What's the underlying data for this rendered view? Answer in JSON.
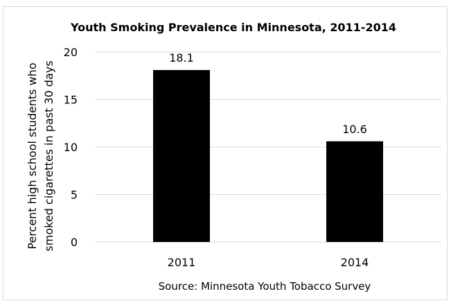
{
  "chart_data": {
    "type": "bar",
    "title": "Youth Smoking Prevalence in Minnesota, 2011-2014",
    "categories": [
      "2011",
      "2014"
    ],
    "values": [
      18.1,
      10.6
    ],
    "data_labels": [
      "18.1",
      "10.6"
    ],
    "ylabel": [
      "Percent high school students who",
      "smoked cigarettes in past 30 days"
    ],
    "xlabel": "Source: Minnesota Youth Tobacco Survey",
    "ylim": [
      0,
      20
    ],
    "yticks": [
      "0",
      "5",
      "10",
      "15",
      "20"
    ],
    "grid": true,
    "legend": "none",
    "bar_color": "#000000",
    "grid_color": "#d9d9d9"
  }
}
